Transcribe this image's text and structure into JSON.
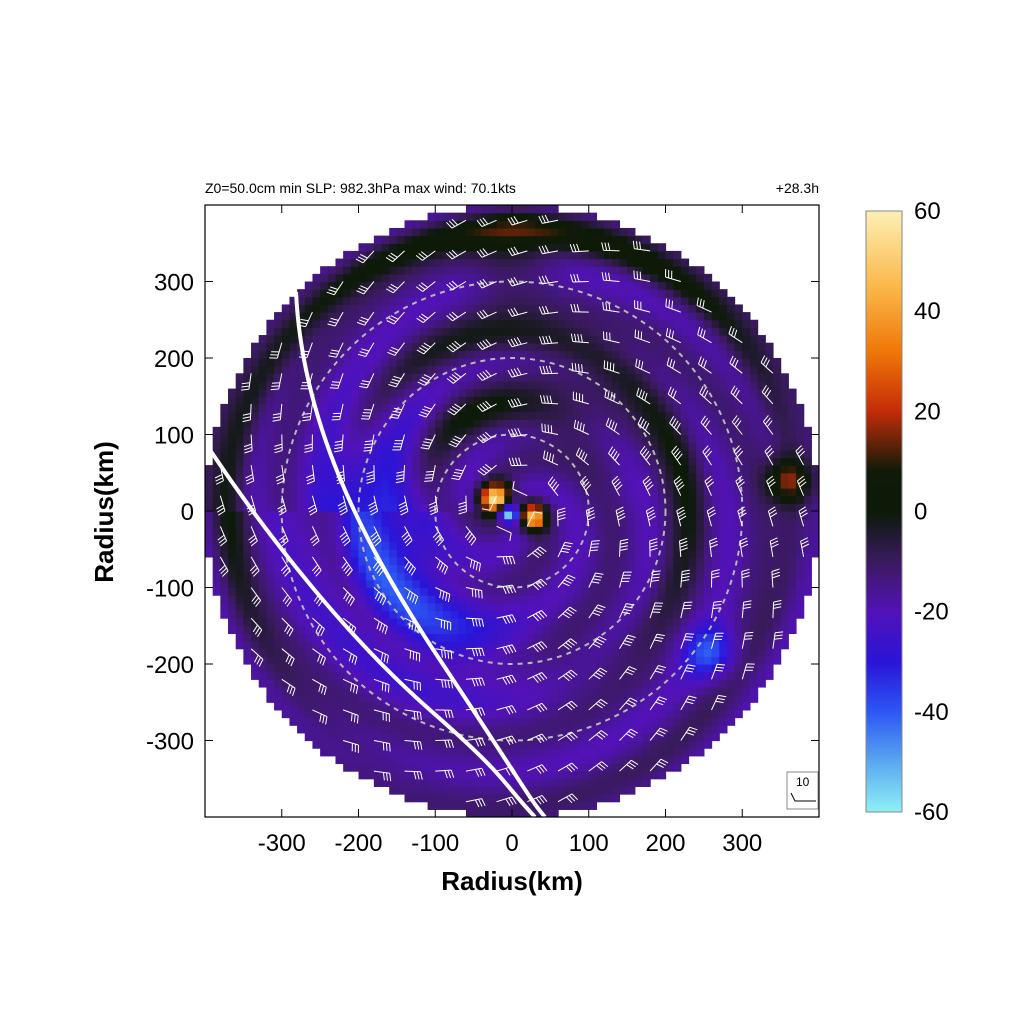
{
  "header": {
    "left": "Z0=50.0cm  min SLP: 982.3hPa   max wind: 70.1kts",
    "right": "+28.3h"
  },
  "chart_data": {
    "type": "heatmap",
    "title": "",
    "xlabel": "Radius(km)",
    "ylabel": "Radius(km)",
    "xlim": [
      -400,
      400
    ],
    "ylim": [
      -400,
      400
    ],
    "x_ticks": [
      "-300",
      "-200",
      "-100",
      "0",
      "100",
      "200",
      "300"
    ],
    "y_ticks": [
      "300",
      "200",
      "100",
      "0",
      "-100",
      "-200",
      "-300"
    ],
    "x_tick_values": [
      -300,
      -200,
      -100,
      0,
      100,
      200,
      300
    ],
    "y_tick_values": [
      300,
      200,
      100,
      0,
      -100,
      -200,
      -300
    ],
    "domain_radius_km": 400,
    "range_rings_km": [
      100,
      200,
      300
    ],
    "colorbar": {
      "min": -60,
      "max": 60,
      "tick_values": [
        60,
        40,
        20,
        0,
        -20,
        -40,
        -60
      ],
      "tick_labels": [
        "60",
        "40",
        "20",
        "0",
        "-20",
        "-40",
        "-60"
      ],
      "stops": [
        {
          "value": -60,
          "color": "#8ef0f4"
        },
        {
          "value": -50,
          "color": "#5aa8f0"
        },
        {
          "value": -40,
          "color": "#2c56f4"
        },
        {
          "value": -30,
          "color": "#2a14d8"
        },
        {
          "value": -20,
          "color": "#5212b8"
        },
        {
          "value": -10,
          "color": "#3a1a5e"
        },
        {
          "value": 0,
          "color": "#0c1a08"
        },
        {
          "value": 8,
          "color": "#101a08"
        },
        {
          "value": 20,
          "color": "#c42c08"
        },
        {
          "value": 32,
          "color": "#f07808"
        },
        {
          "value": 45,
          "color": "#fbb84c"
        },
        {
          "value": 60,
          "color": "#fcf0b4"
        }
      ]
    },
    "wind_reference": {
      "label": "10"
    },
    "grid": false,
    "legend_placement": "right"
  },
  "colors": {
    "background": "#ffffff",
    "axes": "#000000",
    "barbs": "#ffffff",
    "rings": "#b8b8b8",
    "front_lines": "#ffffff"
  }
}
